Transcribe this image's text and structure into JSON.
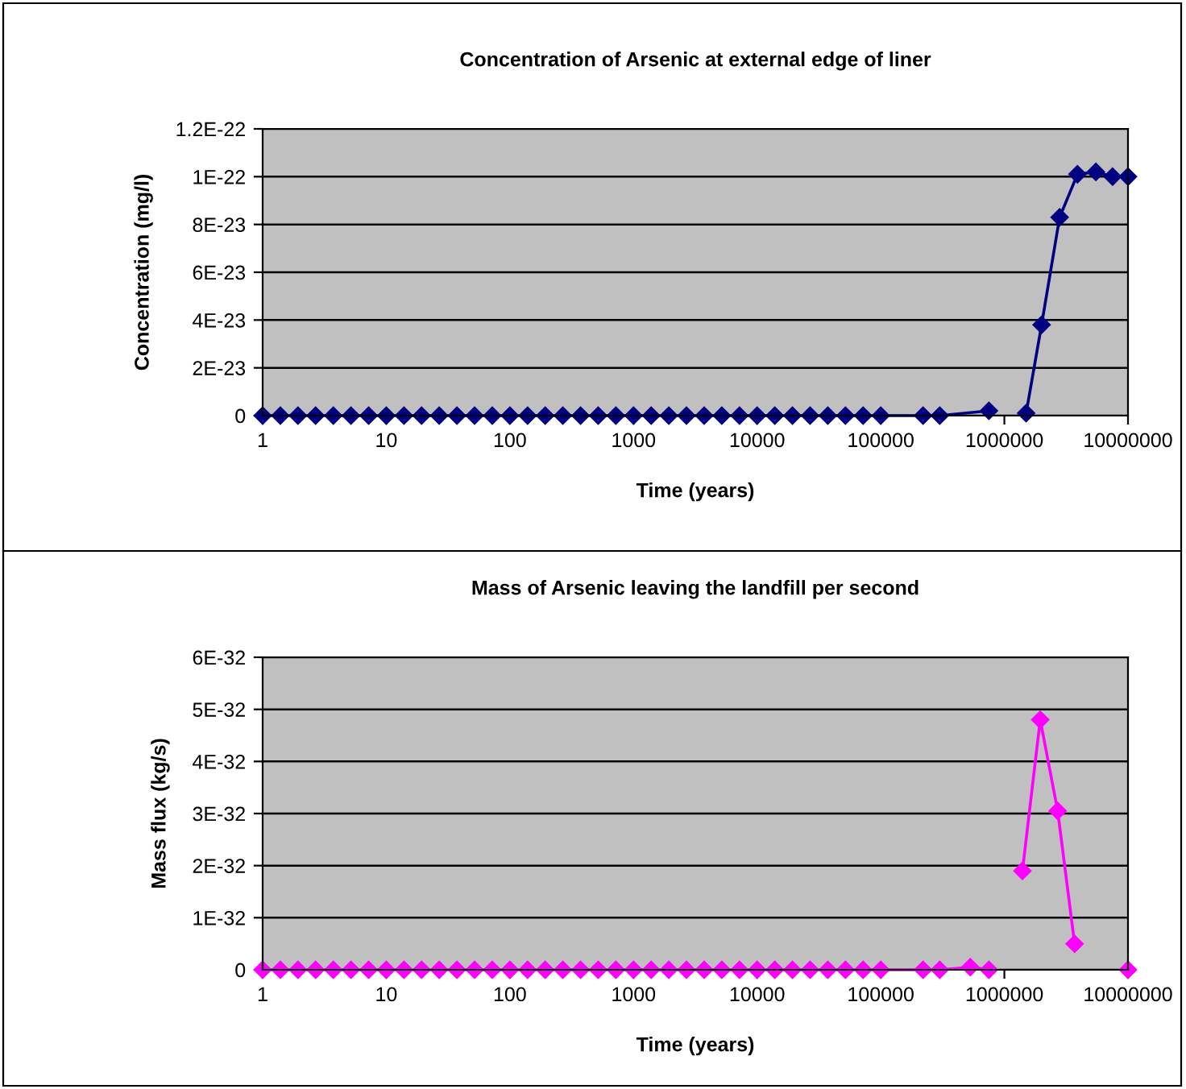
{
  "chart_data": [
    {
      "type": "line",
      "title": "Concentration of Arsenic at external edge of liner",
      "xlabel": "Time (years)",
      "ylabel": "Concentration (mg/l)",
      "log": "x",
      "grid": "y",
      "marker": "diamond",
      "line_style": "solid",
      "xlim": [
        1,
        10000000
      ],
      "xticks": [
        1,
        10,
        100,
        1000,
        10000,
        100000,
        1000000,
        10000000
      ],
      "ylim": [
        0,
        1.2e-22
      ],
      "yticks": [
        0,
        {
          "value": 2e-23,
          "label": "2E-23"
        },
        {
          "value": 4e-23,
          "label": "4E-23"
        },
        {
          "value": 6e-23,
          "label": "6E-23"
        },
        {
          "value": 8e-23,
          "label": "8E-23"
        },
        {
          "value": 1e-22,
          "label": "1E-22"
        },
        {
          "value": 1.2e-22,
          "label": "1.2E-22"
        }
      ],
      "series": [
        {
          "color": "#000080",
          "x": [
            1,
            1.39,
            1.93,
            2.68,
            3.73,
            5.18,
            7.2,
            10,
            13.9,
            19.3,
            26.8,
            37.3,
            51.8,
            72,
            100,
            139,
            193,
            268,
            373,
            518,
            720,
            1000,
            1390,
            1930,
            2680,
            3730,
            5180,
            7200,
            10000,
            13900,
            19300,
            26800,
            37300,
            51800,
            72000,
            100000,
            220000,
            300000,
            750000,
            1100000,
            1500000,
            2000000,
            2800000,
            3900000,
            5500000,
            7500000,
            10000000
          ],
          "values": [
            0,
            0,
            0,
            0,
            0,
            0,
            0,
            0,
            0,
            0,
            0,
            0,
            0,
            0,
            0,
            0,
            0,
            0,
            0,
            0,
            0,
            0,
            0,
            0,
            0,
            0,
            0,
            0,
            0,
            0,
            0,
            0,
            0,
            0,
            0,
            0,
            0,
            0,
            2e-24,
            null,
            1e-24,
            3.8e-23,
            8.3e-23,
            1.01e-22,
            1.02e-22,
            1e-22,
            1e-22
          ]
        }
      ]
    },
    {
      "type": "line",
      "title": "Mass of Arsenic leaving the landfill per second",
      "xlabel": "Time (years)",
      "ylabel": "Mass flux (kg/s)",
      "log": "x",
      "grid": "y",
      "marker": "diamond",
      "line_style": "solid",
      "xlim": [
        1,
        10000000
      ],
      "xticks": [
        1,
        10,
        100,
        1000,
        10000,
        100000,
        1000000,
        10000000
      ],
      "ylim": [
        0,
        6e-32
      ],
      "yticks": [
        0,
        {
          "value": 1e-32,
          "label": "1E-32"
        },
        {
          "value": 2e-32,
          "label": "2E-32"
        },
        {
          "value": 3e-32,
          "label": "3E-32"
        },
        {
          "value": 4e-32,
          "label": "4E-32"
        },
        {
          "value": 5e-32,
          "label": "5E-32"
        },
        {
          "value": 6e-32,
          "label": "6E-32"
        }
      ],
      "series": [
        {
          "color": "#ff00ff",
          "x": [
            1,
            1.39,
            1.93,
            2.68,
            3.73,
            5.18,
            7.2,
            10,
            13.9,
            19.3,
            26.8,
            37.3,
            51.8,
            72,
            100,
            139,
            193,
            268,
            373,
            518,
            720,
            1000,
            1390,
            1930,
            2680,
            3730,
            5180,
            7200,
            10000,
            13900,
            19300,
            26800,
            37300,
            51800,
            72000,
            100000,
            220000,
            300000,
            530000,
            750000,
            1100000,
            1400000,
            1950000,
            2700000,
            3700000,
            5000000,
            10000000
          ],
          "values": [
            0,
            0,
            0,
            0,
            0,
            0,
            0,
            0,
            0,
            0,
            0,
            0,
            0,
            0,
            0,
            0,
            0,
            0,
            0,
            0,
            0,
            0,
            0,
            0,
            0,
            0,
            0,
            0,
            0,
            0,
            0,
            0,
            0,
            0,
            0,
            0,
            0,
            0,
            5e-34,
            0,
            null,
            1.9e-32,
            4.8e-32,
            3.05e-32,
            5e-33,
            null,
            0
          ]
        }
      ]
    }
  ]
}
